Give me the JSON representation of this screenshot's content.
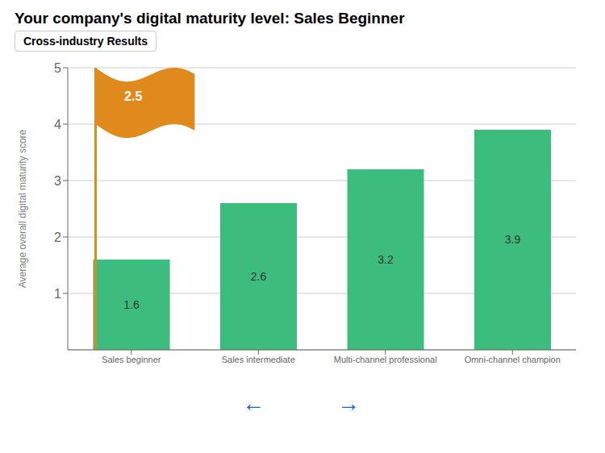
{
  "chart_data": {
    "type": "bar",
    "title": "Your company's digital maturity level: Sales Beginner",
    "subtitle": "Cross-industry Results",
    "categories": [
      "Sales beginner",
      "Sales intermediate",
      "Multi-channel professional",
      "Omni-channel champion"
    ],
    "values": [
      1.6,
      2.6,
      3.2,
      3.9
    ],
    "color": "#3DBD7D",
    "ylabel": "Average overall  digital maturity score",
    "ylim": [
      0,
      5
    ],
    "yticks": [
      1,
      2,
      3,
      4,
      5
    ],
    "grid": true,
    "data_labels": true,
    "annotations": [
      {
        "text": "2.5",
        "color": "#E08A1E"
      },
      {
        "text": "←",
        "color": "#1565C0"
      },
      {
        "text": "→",
        "color": "#1565C0"
      }
    ]
  }
}
